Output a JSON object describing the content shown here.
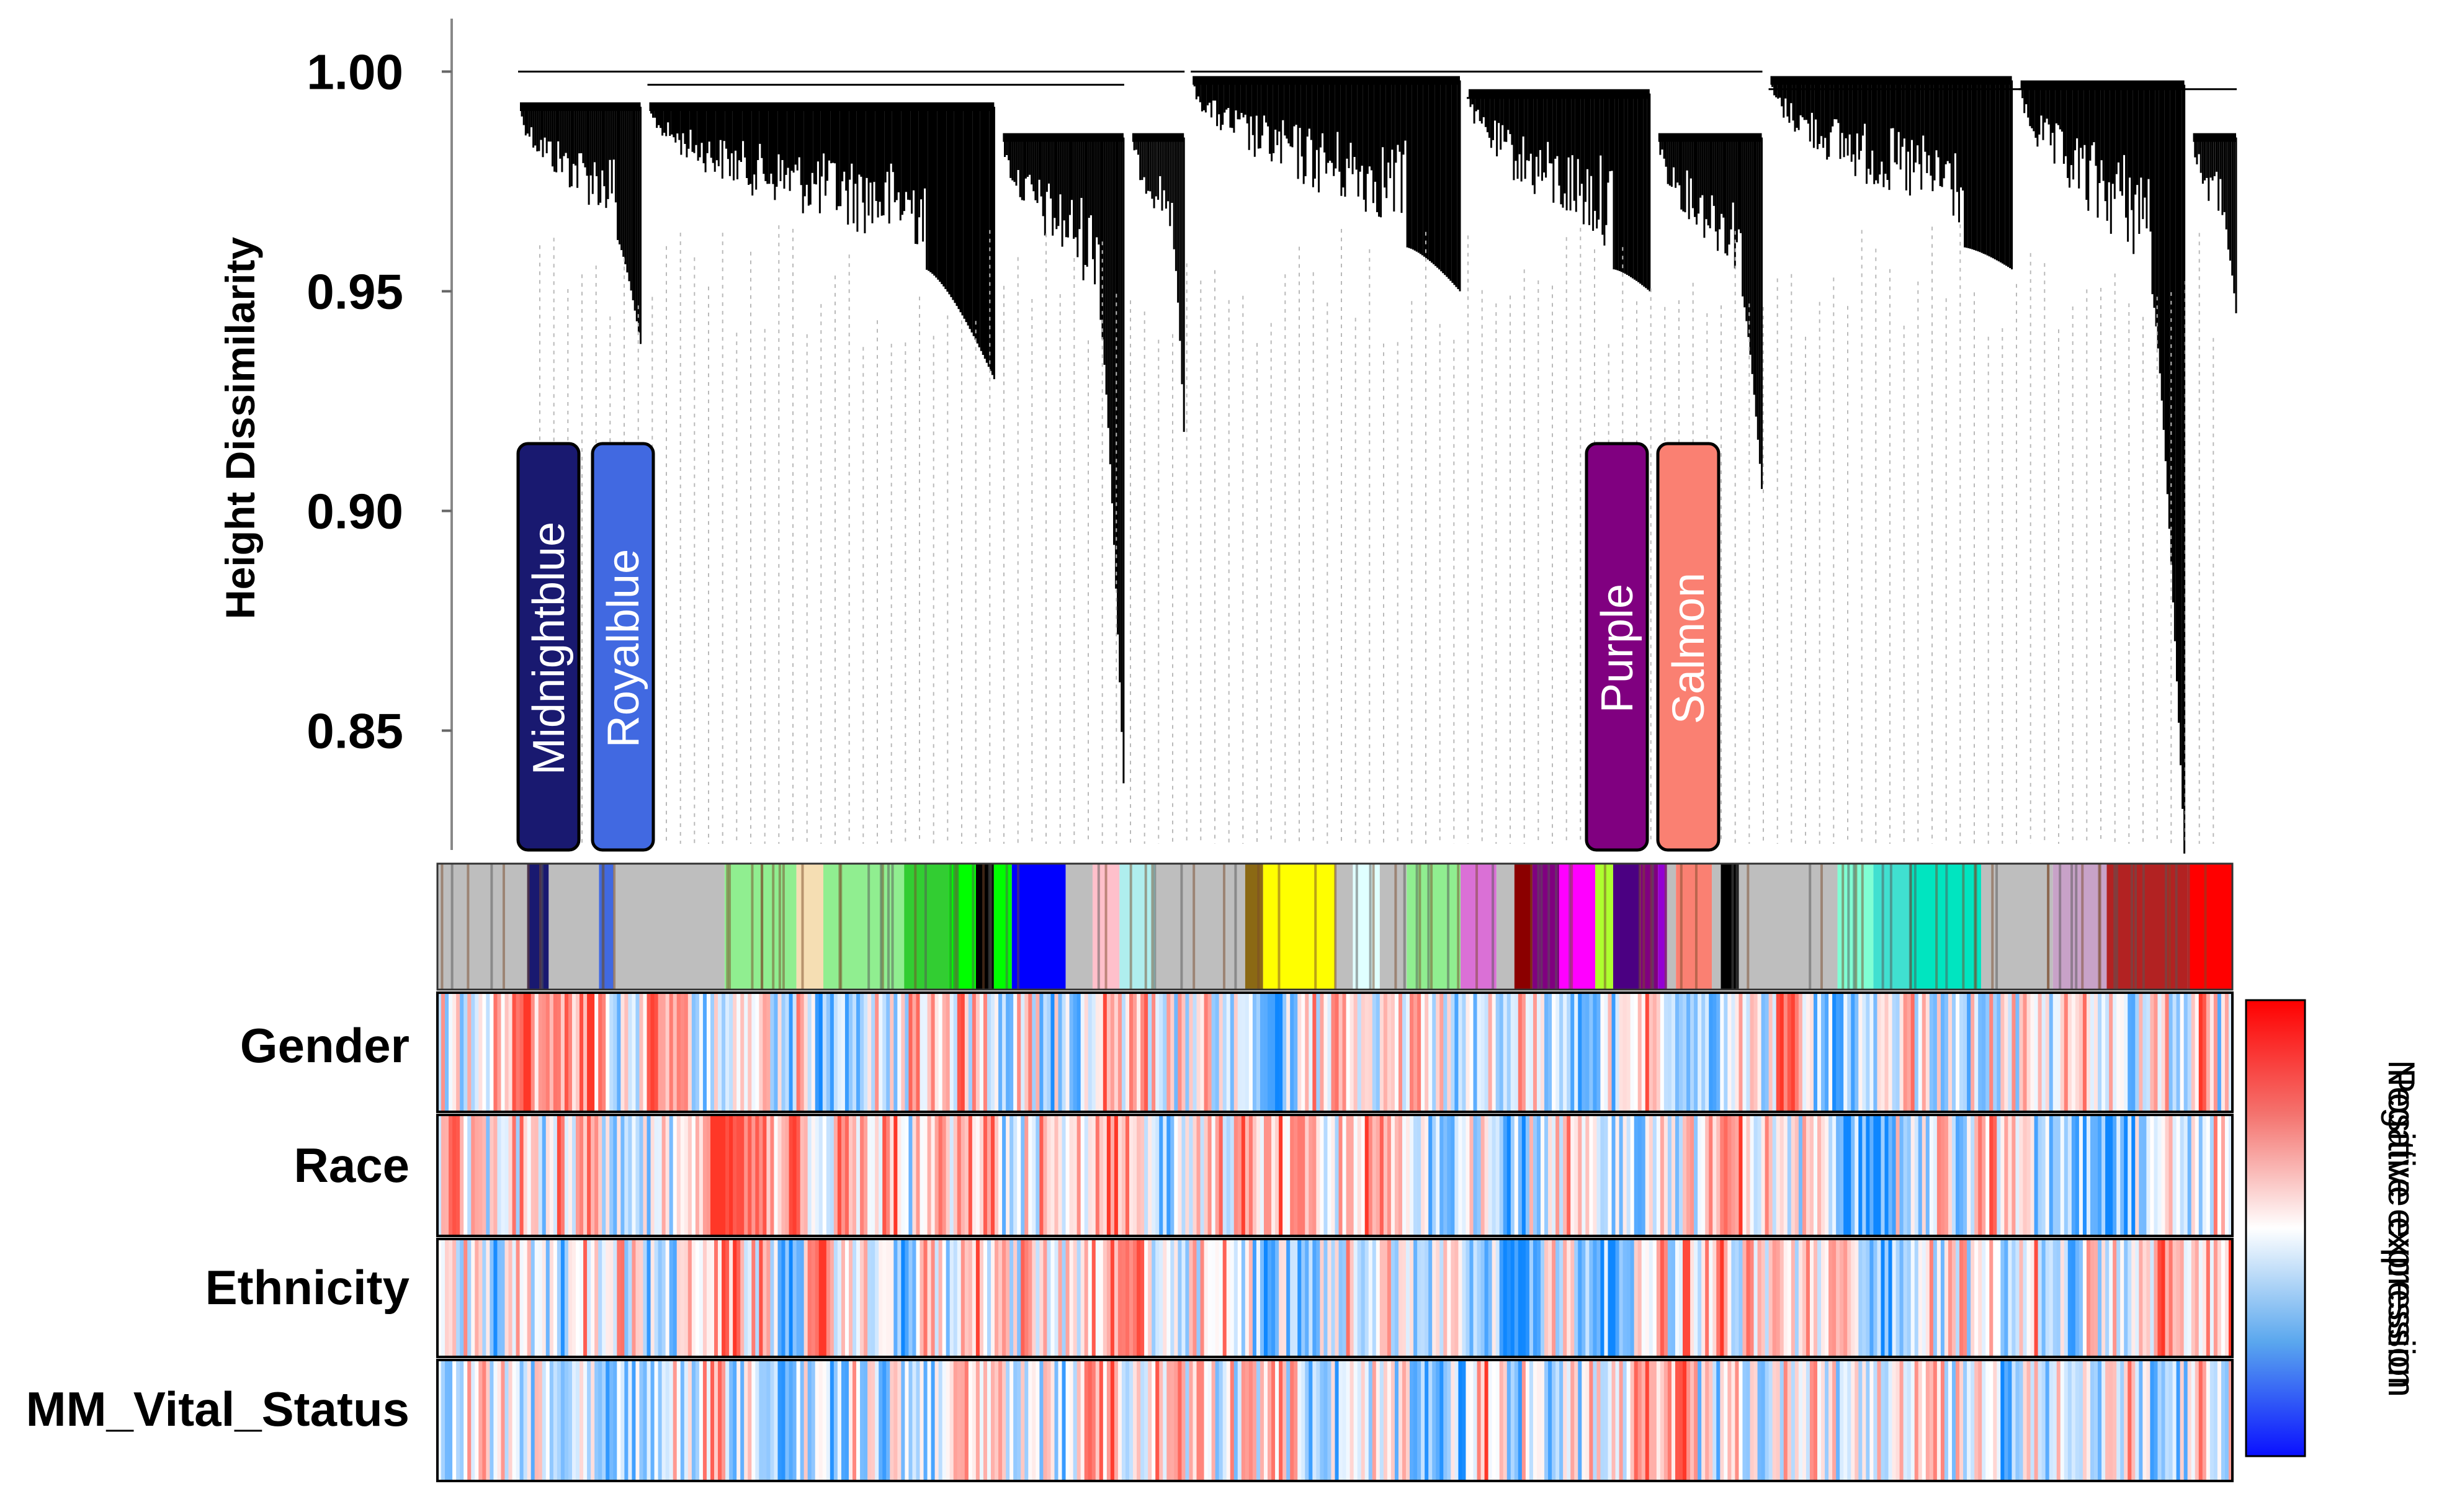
{
  "chart_data": {
    "type": "dendrogram-heatmap",
    "ylabel": "Height Dissimilarity",
    "ylim": [
      0.82,
      1.005
    ],
    "yticks": [
      1.0,
      0.95,
      0.9,
      0.85
    ],
    "ytick_labels": [
      "1.00",
      "0.95",
      "0.90",
      "0.85"
    ],
    "modules": [
      {
        "name": "Midnightblue",
        "color": "#191970"
      },
      {
        "name": "Royalblue",
        "color": "#4169E1"
      },
      {
        "name": "Purple",
        "color": "#800080"
      },
      {
        "name": "Salmon",
        "color": "#FA8072"
      }
    ],
    "module_color_bands": [
      {
        "start": 0.0,
        "end": 0.05,
        "color": "#bebebe"
      },
      {
        "start": 0.05,
        "end": 0.062,
        "color": "#191970"
      },
      {
        "start": 0.062,
        "end": 0.09,
        "color": "#bebebe"
      },
      {
        "start": 0.09,
        "end": 0.098,
        "color": "#4169E1"
      },
      {
        "start": 0.098,
        "end": 0.16,
        "color": "#bebebe"
      },
      {
        "start": 0.16,
        "end": 0.2,
        "color": "#90EE90"
      },
      {
        "start": 0.2,
        "end": 0.215,
        "color": "#F5DEB3"
      },
      {
        "start": 0.215,
        "end": 0.26,
        "color": "#90EE90"
      },
      {
        "start": 0.26,
        "end": 0.285,
        "color": "#32CD32"
      },
      {
        "start": 0.285,
        "end": 0.3,
        "color": "#00FF00"
      },
      {
        "start": 0.3,
        "end": 0.31,
        "color": "#000000"
      },
      {
        "start": 0.31,
        "end": 0.32,
        "color": "#00FF00"
      },
      {
        "start": 0.32,
        "end": 0.35,
        "color": "#0000FF"
      },
      {
        "start": 0.35,
        "end": 0.365,
        "color": "#bebebe"
      },
      {
        "start": 0.365,
        "end": 0.38,
        "color": "#FFC0CB"
      },
      {
        "start": 0.38,
        "end": 0.4,
        "color": "#AFEEEE"
      },
      {
        "start": 0.4,
        "end": 0.45,
        "color": "#bebebe"
      },
      {
        "start": 0.45,
        "end": 0.46,
        "color": "#8B6914"
      },
      {
        "start": 0.46,
        "end": 0.5,
        "color": "#FFFF00"
      },
      {
        "start": 0.5,
        "end": 0.51,
        "color": "#bebebe"
      },
      {
        "start": 0.51,
        "end": 0.525,
        "color": "#E0FFFF"
      },
      {
        "start": 0.525,
        "end": 0.54,
        "color": "#bebebe"
      },
      {
        "start": 0.54,
        "end": 0.57,
        "color": "#90EE90"
      },
      {
        "start": 0.57,
        "end": 0.59,
        "color": "#DA70D6"
      },
      {
        "start": 0.59,
        "end": 0.6,
        "color": "#bebebe"
      },
      {
        "start": 0.6,
        "end": 0.61,
        "color": "#8B0000"
      },
      {
        "start": 0.61,
        "end": 0.625,
        "color": "#800080"
      },
      {
        "start": 0.625,
        "end": 0.645,
        "color": "#FF00FF"
      },
      {
        "start": 0.645,
        "end": 0.655,
        "color": "#ADFF2F"
      },
      {
        "start": 0.655,
        "end": 0.67,
        "color": "#4B0082"
      },
      {
        "start": 0.67,
        "end": 0.68,
        "color": "#800080"
      },
      {
        "start": 0.68,
        "end": 0.685,
        "color": "#9400D3"
      },
      {
        "start": 0.685,
        "end": 0.69,
        "color": "#bebebe"
      },
      {
        "start": 0.69,
        "end": 0.71,
        "color": "#FA8072"
      },
      {
        "start": 0.71,
        "end": 0.715,
        "color": "#bebebe"
      },
      {
        "start": 0.715,
        "end": 0.725,
        "color": "#000000"
      },
      {
        "start": 0.725,
        "end": 0.78,
        "color": "#bebebe"
      },
      {
        "start": 0.78,
        "end": 0.8,
        "color": "#7FFFD4"
      },
      {
        "start": 0.8,
        "end": 0.82,
        "color": "#40E0D0"
      },
      {
        "start": 0.82,
        "end": 0.86,
        "color": "#00E5C0"
      },
      {
        "start": 0.86,
        "end": 0.9,
        "color": "#bebebe"
      },
      {
        "start": 0.9,
        "end": 0.93,
        "color": "#C8A2C8"
      },
      {
        "start": 0.93,
        "end": 0.975,
        "color": "#B22222"
      },
      {
        "start": 0.975,
        "end": 1.0,
        "color": "#FF0000"
      }
    ],
    "traits": [
      "Gender",
      "Race",
      "Ethnicity",
      "MM_Vital_Status"
    ],
    "legend": {
      "positive_label": "Positive expression",
      "negative_label": "Negative expression"
    }
  }
}
